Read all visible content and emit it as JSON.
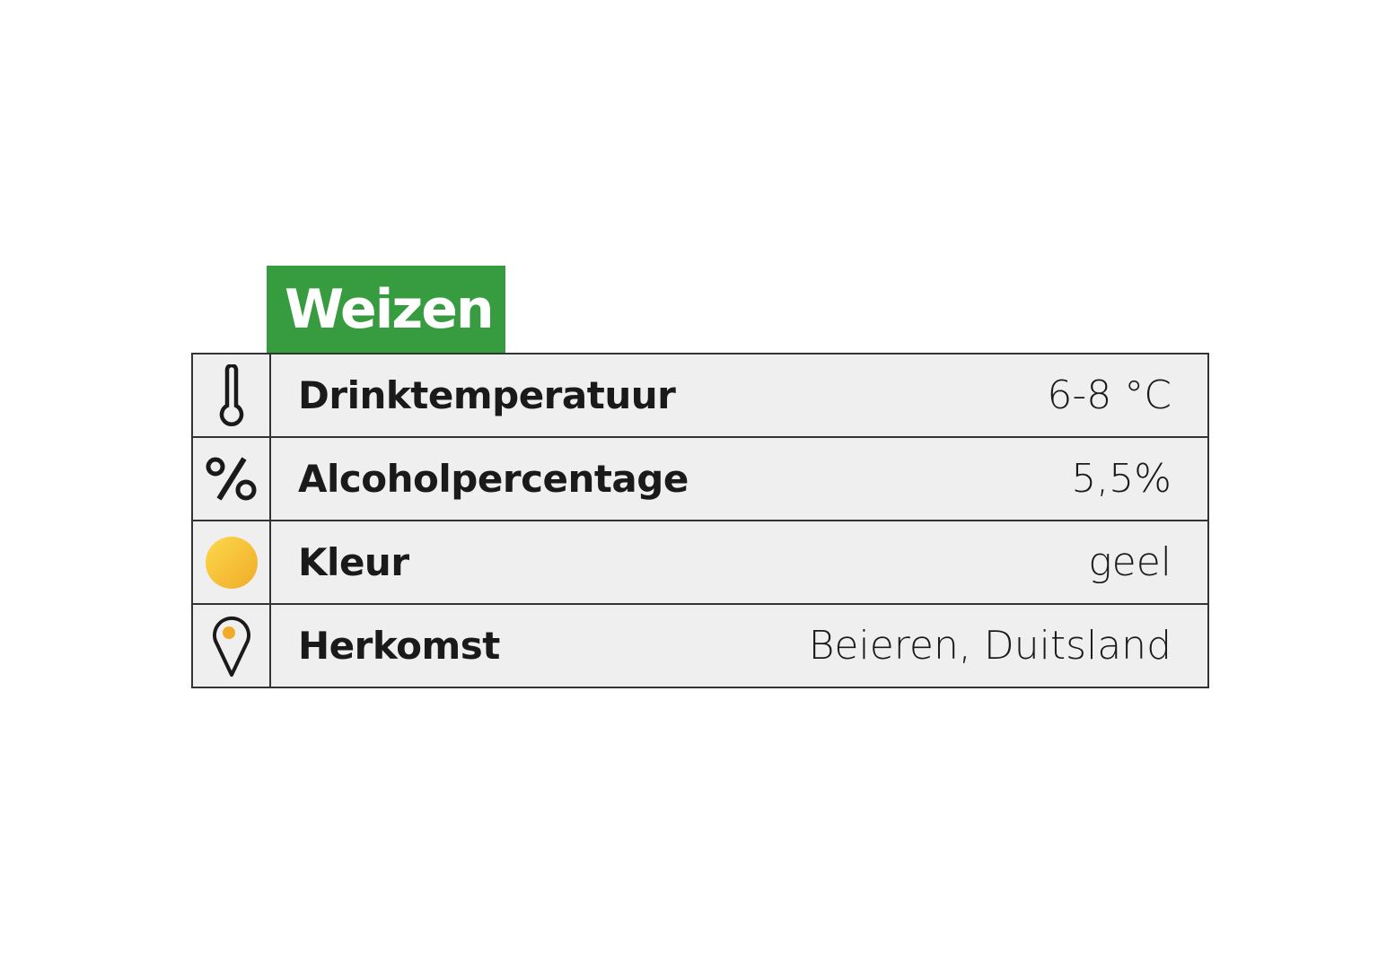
{
  "title": "Weizen",
  "accent_color": "#379b40",
  "rows": [
    {
      "icon": "thermometer-icon",
      "label": "Drinktemperatuur",
      "value": "6-8 °C"
    },
    {
      "icon": "percent-icon",
      "label": "Alcoholpercentage",
      "value": "5,5%"
    },
    {
      "icon": "color-circle-icon",
      "label": "Kleur",
      "value": "geel",
      "swatch_color": "#f6bc35"
    },
    {
      "icon": "location-pin-icon",
      "label": "Herkomst",
      "value": "Beieren, Duitsland"
    }
  ]
}
